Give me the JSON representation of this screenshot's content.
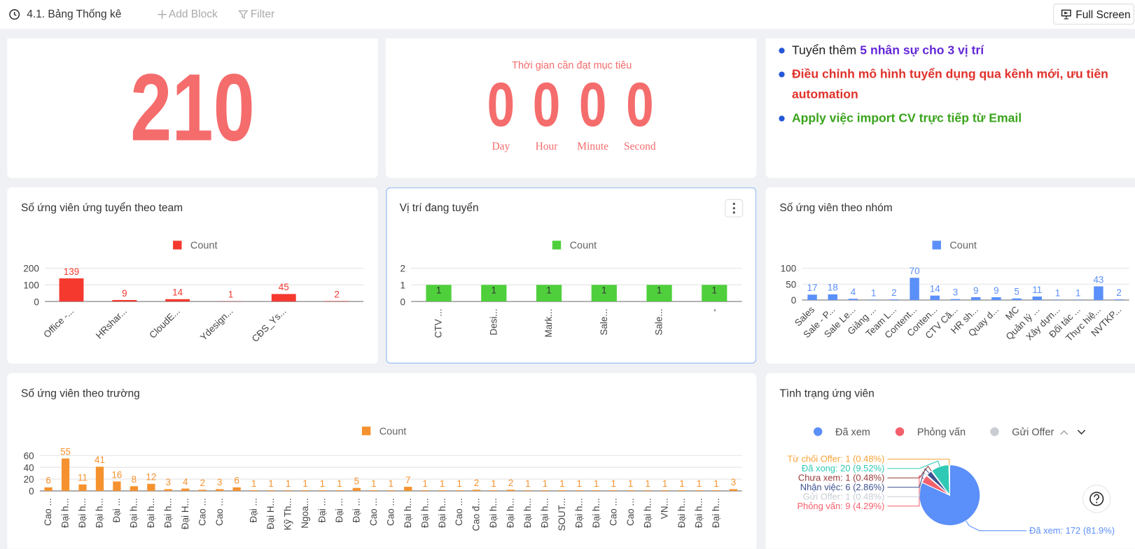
{
  "toolbar": {
    "title": "4.1. Bảng Thống kê",
    "add_block": "Add Block",
    "filter": "Filter",
    "full_screen": "Full Screen"
  },
  "stat": {
    "value": 210
  },
  "countdown": {
    "title": "Thời gian cần đạt mục tiêu",
    "units": [
      {
        "value": 0,
        "label": "Day"
      },
      {
        "value": 0,
        "label": "Hour"
      },
      {
        "value": 0,
        "label": "Minute"
      },
      {
        "value": 0,
        "label": "Second"
      }
    ]
  },
  "notes": [
    {
      "text": "Tuyển thêm",
      "highlight": "5 nhân sự cho 3 vị trí"
    },
    {
      "text": "Điều chỉnh mô hình tuyển dụng qua kênh mới, ưu tiên automation"
    },
    {
      "text": "Apply việc import CV trực tiếp từ Email"
    }
  ],
  "chart_data": [
    {
      "type": "bar",
      "title": "Số ứng viên ứng tuyển theo team",
      "categories": [
        "Office -...",
        "HRshar...",
        "CloudE...",
        "Ydesign...",
        "CĐS_Ys...",
        null
      ],
      "series": [
        {
          "name": "Count",
          "color": "#f5392f",
          "values": [
            139,
            9,
            14,
            1,
            45,
            2
          ]
        }
      ],
      "ylim": [
        0,
        200
      ],
      "yticks": [
        0,
        100,
        200
      ],
      "grid": true
    },
    {
      "type": "bar",
      "title": "Vị trí đang tuyển",
      "categories": [
        "CTV ...",
        "Desi...",
        "Mark...",
        "Sale...",
        "Sale...",
        "-"
      ],
      "series": [
        {
          "name": "Count",
          "color": "#4fcf3c",
          "values": [
            1,
            1,
            1,
            1,
            1,
            1
          ]
        }
      ],
      "ylim": [
        0,
        2
      ],
      "yticks": [
        0,
        1,
        2
      ],
      "grid": true
    },
    {
      "type": "bar",
      "title": "Số ứng viên theo nhóm",
      "categories": [
        "Sales",
        "Sale - P...",
        "Sale Le...",
        "Giảng ...",
        "Team L...",
        "Content...",
        "Conten...",
        "CTV Că...",
        "HR sh...",
        "Quay d...",
        "MC",
        "Quản lý ...",
        "Xây dựn...",
        "Đối tác ...",
        "Thực hiệ...",
        "NVTKP..."
      ],
      "series": [
        {
          "name": "Count",
          "color": "#5b8ff9",
          "values": [
            17,
            18,
            4,
            1,
            2,
            70,
            14,
            3,
            9,
            9,
            5,
            11,
            1,
            1,
            43,
            2
          ]
        }
      ],
      "ylim": [
        0,
        100
      ],
      "yticks": [
        0,
        50,
        100
      ],
      "grid": true
    },
    {
      "type": "bar",
      "title": "Số ứng viên theo trường",
      "categories": [
        "Cao ...",
        "Đại h...",
        "Đại h...",
        "Đại h...",
        "Đại ...",
        "Đại h...",
        "Đại h...",
        "Đại h...",
        "Đại H...",
        "Cao ...",
        "Cao ...",
        null,
        "Đại ...",
        "Đại H...",
        "Kỹ Th...",
        "Ngoa...",
        "Đại ...",
        "Đại ...",
        "Đại ...",
        "Cao ...",
        "Cao ...",
        "Đại h...",
        "Đại h...",
        "Đại h...",
        "Cao ...",
        "Cao đ...",
        "Đại h...",
        "Đại h...",
        "Đại h...",
        "Đại h...",
        "SOUT...",
        "Đại h...",
        "Đại h...",
        "Cao ...",
        "Cao ...",
        "Đại h...",
        "VN...",
        "Đại h...",
        "Đại h...",
        "Đại h...",
        null
      ],
      "series": [
        {
          "name": "Count",
          "color": "#f5922f",
          "values": [
            6,
            55,
            11,
            41,
            16,
            8,
            12,
            3,
            4,
            2,
            3,
            6,
            1,
            1,
            1,
            1,
            1,
            1,
            5,
            1,
            1,
            7,
            1,
            1,
            1,
            2,
            1,
            2,
            1,
            1,
            1,
            1,
            1,
            1,
            1,
            1,
            1,
            1,
            1,
            1,
            3
          ]
        }
      ],
      "ylim": [
        0,
        60
      ],
      "yticks": [
        0,
        20,
        40,
        60
      ],
      "grid": true
    },
    {
      "type": "pie",
      "title": "Tình trạng ứng viên",
      "categories": [
        "Đã xem",
        "Phỏng vấn",
        "Gửi Offer",
        "Nhận việc",
        "Chưa xem",
        "Đã xong",
        "Từ chối Offer"
      ],
      "values": [
        172,
        9,
        1,
        6,
        1,
        20,
        1
      ],
      "value_labels": [
        "Đã xem: 172 (81.9%)",
        "Phỏng vấn: 9 (4.29%)",
        "Gửi Offer: 1 (0.48%)",
        "Nhận việc: 6 (2.86%)",
        "Chưa xem: 1 (0.48%)",
        "Đã xong: 20 (9.52%)",
        "Từ chối Offer: 1 (0.48%)"
      ],
      "colors": [
        "#5b8ff9",
        "#f4606c",
        "#c9cdd4",
        "#3d5191",
        "#9a3b3b",
        "#30c9b5",
        "#f7a43b"
      ]
    }
  ]
}
